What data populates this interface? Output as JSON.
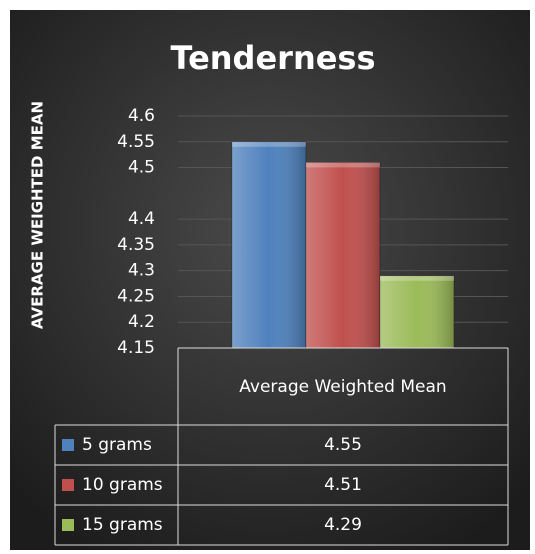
{
  "chart_data": {
    "type": "bar",
    "title": "Tenderness",
    "y_label": "AVERAGE WEIGHTED MEAN",
    "categories": [
      "Average Weighted Mean"
    ],
    "series": [
      {
        "name": "5 grams",
        "color": "#4f81bd",
        "values": [
          4.55
        ]
      },
      {
        "name": "10 grams",
        "color": "#c0504d",
        "values": [
          4.51
        ]
      },
      {
        "name": "15 grams",
        "color": "#9bbb59",
        "values": [
          4.29
        ]
      }
    ],
    "ylim": [
      4.15,
      4.6
    ],
    "yticks": [
      4.6,
      4.55,
      4.5,
      4.4,
      4.35,
      4.3,
      4.25,
      4.2,
      4.15
    ],
    "grid": true,
    "data_table": true
  }
}
